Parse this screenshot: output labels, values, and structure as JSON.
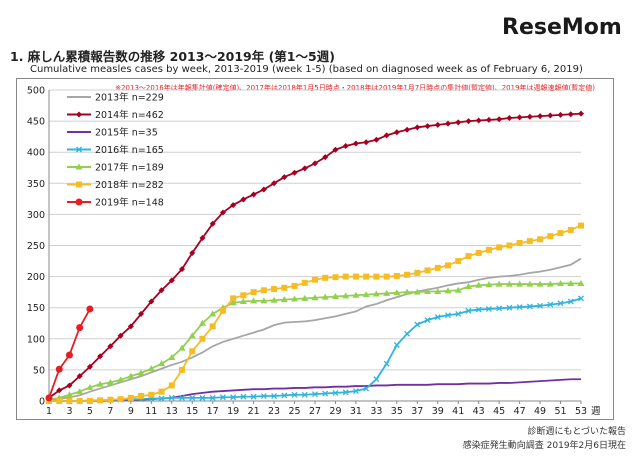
{
  "brand": {
    "logo_text": "ReseMom"
  },
  "header": {
    "title": "1. 麻しん累積報告数の推移 2013～2019年 (第1～5週)",
    "subtitle": "Cumulative measles cases by week, 2013-2019 (week 1-5) (based on diagnosed week as of February 6, 2019)"
  },
  "footer": {
    "line1": "診断週にもとづいた報告",
    "line2": "感染症発生動向調査 2019年2月6日現在"
  },
  "chart_data": {
    "type": "line",
    "title": "",
    "note": "※2013～2016年は年報集計値(確定値)、2017年は2018年1月5日時点・2018年は2019年1月7日時点の集計値(暫定値)、2019年は週報速報値(暫定値)",
    "xlabel": "週",
    "ylabel": "",
    "xlim": [
      1,
      53
    ],
    "ylim": [
      0,
      500
    ],
    "x_ticks": [
      1,
      3,
      5,
      7,
      9,
      11,
      13,
      15,
      17,
      19,
      21,
      23,
      25,
      27,
      29,
      31,
      33,
      35,
      37,
      39,
      41,
      43,
      45,
      47,
      49,
      51,
      53
    ],
    "y_ticks": [
      0,
      50,
      100,
      150,
      200,
      250,
      300,
      350,
      400,
      450,
      500
    ],
    "grid": "horizontal",
    "legend_position": "top-left",
    "series": [
      {
        "name": "2013年 n=229",
        "color": "#a6a6a6",
        "marker": "none",
        "values": [
          1,
          3,
          6,
          9,
          15,
          20,
          25,
          30,
          35,
          40,
          46,
          52,
          58,
          63,
          70,
          78,
          88,
          95,
          100,
          105,
          110,
          115,
          122,
          126,
          127,
          128,
          130,
          133,
          136,
          140,
          144,
          152,
          156,
          162,
          167,
          172,
          176,
          179,
          182,
          186,
          189,
          191,
          195,
          198,
          200,
          201,
          203,
          206,
          208,
          211,
          215,
          219,
          229
        ]
      },
      {
        "name": "2014年 n=462",
        "color": "#a50021",
        "marker": "diamond",
        "values": [
          5,
          17,
          25,
          40,
          55,
          72,
          88,
          105,
          120,
          140,
          160,
          178,
          194,
          212,
          238,
          262,
          285,
          303,
          315,
          324,
          332,
          340,
          350,
          360,
          367,
          374,
          382,
          392,
          404,
          410,
          414,
          416,
          420,
          427,
          432,
          436,
          440,
          442,
          444,
          446,
          448,
          450,
          451,
          452,
          453,
          455,
          456,
          457,
          458,
          459,
          460,
          461,
          462
        ]
      },
      {
        "name": "2015年 n=35",
        "color": "#7030a0",
        "marker": "none",
        "values": [
          0,
          0,
          0,
          0,
          0,
          0,
          1,
          1,
          2,
          2,
          3,
          4,
          5,
          8,
          11,
          13,
          15,
          16,
          17,
          18,
          19,
          19,
          20,
          20,
          21,
          21,
          22,
          22,
          23,
          23,
          24,
          24,
          25,
          25,
          26,
          26,
          26,
          26,
          27,
          27,
          27,
          28,
          28,
          28,
          29,
          29,
          30,
          31,
          32,
          33,
          34,
          35,
          35
        ]
      },
      {
        "name": "2016年 n=165",
        "color": "#2fb4e0",
        "marker": "x",
        "values": [
          0,
          0,
          0,
          0,
          1,
          1,
          2,
          2,
          3,
          3,
          4,
          4,
          5,
          5,
          5,
          5,
          5,
          6,
          6,
          7,
          7,
          8,
          8,
          9,
          10,
          10,
          11,
          12,
          13,
          14,
          16,
          20,
          35,
          60,
          90,
          108,
          123,
          130,
          135,
          138,
          140,
          145,
          147,
          148,
          149,
          150,
          151,
          152,
          153,
          155,
          157,
          160,
          165
        ]
      },
      {
        "name": "2017年 n=189",
        "color": "#92d050",
        "marker": "triangle",
        "values": [
          2,
          5,
          10,
          15,
          22,
          27,
          30,
          34,
          40,
          45,
          52,
          60,
          70,
          85,
          105,
          125,
          140,
          150,
          158,
          160,
          161,
          161,
          162,
          163,
          164,
          165,
          166,
          167,
          168,
          169,
          170,
          171,
          172,
          173,
          174,
          175,
          175,
          176,
          176,
          177,
          178,
          184,
          186,
          187,
          188,
          188,
          188,
          188,
          188,
          188,
          189,
          189,
          189
        ]
      },
      {
        "name": "2018年 n=282",
        "color": "#f6bc26",
        "marker": "square",
        "values": [
          0,
          0,
          0,
          0,
          0,
          1,
          2,
          3,
          5,
          8,
          10,
          15,
          25,
          50,
          80,
          100,
          120,
          145,
          165,
          170,
          175,
          178,
          180,
          182,
          185,
          190,
          195,
          198,
          199,
          200,
          200,
          200,
          200,
          200,
          201,
          203,
          206,
          210,
          214,
          218,
          225,
          233,
          238,
          243,
          247,
          250,
          254,
          257,
          260,
          265,
          270,
          275,
          282
        ]
      },
      {
        "name": "2019年 n=148",
        "color": "#e31e24",
        "marker": "circle",
        "values": [
          5,
          51,
          74,
          118,
          148
        ]
      }
    ]
  }
}
